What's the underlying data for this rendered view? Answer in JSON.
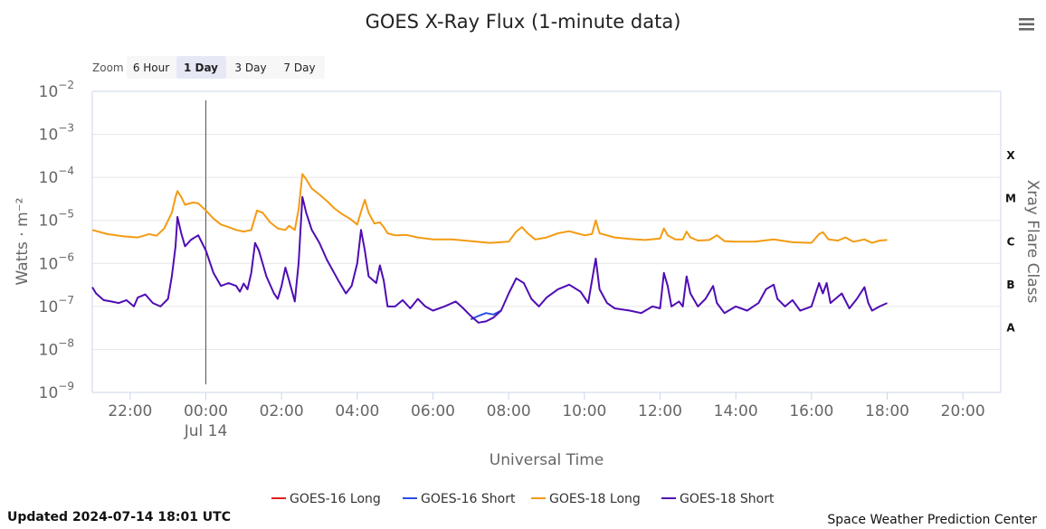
{
  "menu": {
    "icon": "hamburger-menu-icon"
  },
  "zoom": {
    "label": "Zoom",
    "buttons": [
      "6 Hour",
      "1 Day",
      "3 Day",
      "7 Day"
    ],
    "active": "1 Day"
  },
  "footer": {
    "updated": "Updated 2024-07-14 18:01 UTC",
    "credit": "Space Weather Prediction Center"
  },
  "chart_data": {
    "type": "line",
    "title": "GOES X-Ray Flux (1-minute data)",
    "xlabel": "Universal Time",
    "ylabel": "Watts · m⁻²",
    "y2label": "Xray Flare Class",
    "yscale": "log",
    "ylim": [
      1e-09,
      0.01
    ],
    "xlim_hours": [
      -3.0,
      21.0
    ],
    "x_ticks": [
      {
        "h": -2,
        "label": "22:00"
      },
      {
        "h": 0,
        "label": "00:00",
        "sublabel": "Jul 14"
      },
      {
        "h": 2,
        "label": "02:00"
      },
      {
        "h": 4,
        "label": "04:00"
      },
      {
        "h": 6,
        "label": "06:00"
      },
      {
        "h": 8,
        "label": "08:00"
      },
      {
        "h": 10,
        "label": "10:00"
      },
      {
        "h": 12,
        "label": "12:00"
      },
      {
        "h": 14,
        "label": "14:00"
      },
      {
        "h": 16,
        "label": "16:00"
      },
      {
        "h": 18,
        "label": "18:00"
      },
      {
        "h": 20,
        "label": "20:00"
      }
    ],
    "y_ticks": [
      {
        "exp": -2,
        "label": "10",
        "sup": "−2"
      },
      {
        "exp": -3,
        "label": "10",
        "sup": "−3"
      },
      {
        "exp": -4,
        "label": "10",
        "sup": "−4"
      },
      {
        "exp": -5,
        "label": "10",
        "sup": "−5"
      },
      {
        "exp": -6,
        "label": "10",
        "sup": "−6"
      },
      {
        "exp": -7,
        "label": "10",
        "sup": "−7"
      },
      {
        "exp": -8,
        "label": "10",
        "sup": "−8"
      },
      {
        "exp": -9,
        "label": "10",
        "sup": "−9"
      }
    ],
    "flare_classes": [
      {
        "label": "X",
        "value": 0.0001
      },
      {
        "label": "M",
        "value": 1e-05
      },
      {
        "label": "C",
        "value": 1e-06
      },
      {
        "label": "B",
        "value": 1e-07
      },
      {
        "label": "A",
        "value": 1e-08
      }
    ],
    "marker_hour": 0.0,
    "series": [
      {
        "name": "GOES-16 Long",
        "color": "#e0201b",
        "points": []
      },
      {
        "name": "GOES-16 Short",
        "color": "#2b4fe0",
        "points": [
          [
            7.0,
            5e-08
          ],
          [
            7.2,
            6e-08
          ],
          [
            7.4,
            7e-08
          ],
          [
            7.6,
            6.5e-08
          ],
          [
            7.8,
            8e-08
          ]
        ]
      },
      {
        "name": "GOES-18 Long",
        "color": "#f39b13",
        "points": [
          [
            -3.0,
            6e-06
          ],
          [
            -2.6,
            4.8e-06
          ],
          [
            -2.2,
            4.3e-06
          ],
          [
            -1.8,
            4e-06
          ],
          [
            -1.5,
            4.8e-06
          ],
          [
            -1.3,
            4.4e-06
          ],
          [
            -1.1,
            6.5e-06
          ],
          [
            -0.9,
            1.5e-05
          ],
          [
            -0.8,
            3.5e-05
          ],
          [
            -0.75,
            4.8e-05
          ],
          [
            -0.65,
            3.5e-05
          ],
          [
            -0.55,
            2.3e-05
          ],
          [
            -0.35,
            2.6e-05
          ],
          [
            -0.2,
            2.5e-05
          ],
          [
            0.0,
            1.7e-05
          ],
          [
            0.2,
            1.1e-05
          ],
          [
            0.4,
            8e-06
          ],
          [
            0.6,
            7e-06
          ],
          [
            0.8,
            6e-06
          ],
          [
            1.0,
            5.5e-06
          ],
          [
            1.2,
            6e-06
          ],
          [
            1.35,
            1.7e-05
          ],
          [
            1.5,
            1.5e-05
          ],
          [
            1.7,
            9e-06
          ],
          [
            1.9,
            6.5e-06
          ],
          [
            2.1,
            6e-06
          ],
          [
            2.2,
            7.5e-06
          ],
          [
            2.35,
            6e-06
          ],
          [
            2.45,
            1.8e-05
          ],
          [
            2.55,
            0.00012
          ],
          [
            2.65,
            9e-05
          ],
          [
            2.8,
            5.5e-05
          ],
          [
            3.0,
            4e-05
          ],
          [
            3.2,
            2.8e-05
          ],
          [
            3.4,
            1.9e-05
          ],
          [
            3.6,
            1.4e-05
          ],
          [
            3.8,
            1.1e-05
          ],
          [
            4.0,
            8e-06
          ],
          [
            4.1,
            1.6e-05
          ],
          [
            4.2,
            3e-05
          ],
          [
            4.3,
            1.5e-05
          ],
          [
            4.45,
            8.5e-06
          ],
          [
            4.6,
            9e-06
          ],
          [
            4.7,
            7e-06
          ],
          [
            4.8,
            5e-06
          ],
          [
            5.0,
            4.5e-06
          ],
          [
            5.3,
            4.6e-06
          ],
          [
            5.6,
            4e-06
          ],
          [
            6.0,
            3.6e-06
          ],
          [
            6.5,
            3.6e-06
          ],
          [
            7.0,
            3.3e-06
          ],
          [
            7.5,
            3e-06
          ],
          [
            8.0,
            3.2e-06
          ],
          [
            8.2,
            5.5e-06
          ],
          [
            8.35,
            7e-06
          ],
          [
            8.5,
            5e-06
          ],
          [
            8.7,
            3.6e-06
          ],
          [
            9.0,
            4e-06
          ],
          [
            9.3,
            5e-06
          ],
          [
            9.6,
            5.6e-06
          ],
          [
            10.0,
            4.5e-06
          ],
          [
            10.2,
            4.8e-06
          ],
          [
            10.3,
            1e-05
          ],
          [
            10.4,
            5e-06
          ],
          [
            10.8,
            4e-06
          ],
          [
            11.2,
            3.7e-06
          ],
          [
            11.6,
            3.5e-06
          ],
          [
            12.0,
            3.8e-06
          ],
          [
            12.1,
            6.5e-06
          ],
          [
            12.2,
            4.5e-06
          ],
          [
            12.4,
            3.6e-06
          ],
          [
            12.6,
            3.6e-06
          ],
          [
            12.7,
            5.5e-06
          ],
          [
            12.8,
            4e-06
          ],
          [
            13.0,
            3.4e-06
          ],
          [
            13.3,
            3.5e-06
          ],
          [
            13.5,
            4.5e-06
          ],
          [
            13.7,
            3.3e-06
          ],
          [
            14.0,
            3.2e-06
          ],
          [
            14.5,
            3.2e-06
          ],
          [
            15.0,
            3.6e-06
          ],
          [
            15.5,
            3.1e-06
          ],
          [
            16.0,
            3e-06
          ],
          [
            16.2,
            4.8e-06
          ],
          [
            16.3,
            5.3e-06
          ],
          [
            16.45,
            3.6e-06
          ],
          [
            16.7,
            3.4e-06
          ],
          [
            16.9,
            4e-06
          ],
          [
            17.1,
            3.2e-06
          ],
          [
            17.4,
            3.6e-06
          ],
          [
            17.6,
            3e-06
          ],
          [
            17.8,
            3.4e-06
          ],
          [
            18.0,
            3.5e-06
          ]
        ]
      },
      {
        "name": "GOES-18 Short",
        "color": "#4f0db3",
        "points": [
          [
            -3.0,
            2.8e-07
          ],
          [
            -2.9,
            2e-07
          ],
          [
            -2.7,
            1.4e-07
          ],
          [
            -2.5,
            1.3e-07
          ],
          [
            -2.3,
            1.2e-07
          ],
          [
            -2.1,
            1.4e-07
          ],
          [
            -1.9,
            1e-07
          ],
          [
            -1.8,
            1.6e-07
          ],
          [
            -1.6,
            1.9e-07
          ],
          [
            -1.4,
            1.2e-07
          ],
          [
            -1.2,
            1e-07
          ],
          [
            -1.0,
            1.5e-07
          ],
          [
            -0.9,
            5e-07
          ],
          [
            -0.8,
            2.5e-06
          ],
          [
            -0.75,
            1.2e-05
          ],
          [
            -0.65,
            5e-06
          ],
          [
            -0.55,
            2.5e-06
          ],
          [
            -0.4,
            3.5e-06
          ],
          [
            -0.2,
            4.5e-06
          ],
          [
            0.0,
            2e-06
          ],
          [
            0.2,
            6e-07
          ],
          [
            0.4,
            3e-07
          ],
          [
            0.6,
            3.5e-07
          ],
          [
            0.8,
            3e-07
          ],
          [
            0.9,
            2.2e-07
          ],
          [
            1.0,
            3.4e-07
          ],
          [
            1.1,
            2.5e-07
          ],
          [
            1.2,
            6e-07
          ],
          [
            1.3,
            3e-06
          ],
          [
            1.4,
            2e-06
          ],
          [
            1.6,
            5e-07
          ],
          [
            1.8,
            2e-07
          ],
          [
            1.9,
            1.5e-07
          ],
          [
            2.0,
            3e-07
          ],
          [
            2.1,
            8e-07
          ],
          [
            2.2,
            4e-07
          ],
          [
            2.35,
            1.3e-07
          ],
          [
            2.45,
            1e-06
          ],
          [
            2.55,
            3.5e-05
          ],
          [
            2.65,
            1.5e-05
          ],
          [
            2.8,
            6e-06
          ],
          [
            3.0,
            3e-06
          ],
          [
            3.2,
            1.2e-06
          ],
          [
            3.5,
            4e-07
          ],
          [
            3.7,
            2e-07
          ],
          [
            3.85,
            3e-07
          ],
          [
            4.0,
            1e-06
          ],
          [
            4.1,
            6e-06
          ],
          [
            4.2,
            2e-06
          ],
          [
            4.3,
            5e-07
          ],
          [
            4.5,
            3.5e-07
          ],
          [
            4.6,
            9e-07
          ],
          [
            4.7,
            4e-07
          ],
          [
            4.8,
            1e-07
          ],
          [
            5.0,
            1e-07
          ],
          [
            5.2,
            1.4e-07
          ],
          [
            5.4,
            9e-08
          ],
          [
            5.6,
            1.5e-07
          ],
          [
            5.8,
            1e-07
          ],
          [
            6.0,
            8e-08
          ],
          [
            6.3,
            1e-07
          ],
          [
            6.6,
            1.3e-07
          ],
          [
            6.8,
            9e-08
          ],
          [
            7.0,
            6e-08
          ],
          [
            7.2,
            4.2e-08
          ],
          [
            7.4,
            4.5e-08
          ],
          [
            7.6,
            5.5e-08
          ],
          [
            7.8,
            8e-08
          ],
          [
            8.0,
            2e-07
          ],
          [
            8.2,
            4.5e-07
          ],
          [
            8.4,
            3.5e-07
          ],
          [
            8.6,
            1.5e-07
          ],
          [
            8.8,
            1e-07
          ],
          [
            9.0,
            1.6e-07
          ],
          [
            9.3,
            2.5e-07
          ],
          [
            9.6,
            3.2e-07
          ],
          [
            9.9,
            2.2e-07
          ],
          [
            10.1,
            1.2e-07
          ],
          [
            10.3,
            1.3e-06
          ],
          [
            10.4,
            2.5e-07
          ],
          [
            10.6,
            1.2e-07
          ],
          [
            10.8,
            9e-08
          ],
          [
            11.2,
            8e-08
          ],
          [
            11.5,
            7e-08
          ],
          [
            11.8,
            1e-07
          ],
          [
            12.0,
            9e-08
          ],
          [
            12.1,
            6e-07
          ],
          [
            12.2,
            3e-07
          ],
          [
            12.3,
            1e-07
          ],
          [
            12.5,
            1.3e-07
          ],
          [
            12.6,
            1e-07
          ],
          [
            12.7,
            5e-07
          ],
          [
            12.8,
            2e-07
          ],
          [
            13.0,
            1e-07
          ],
          [
            13.2,
            1.5e-07
          ],
          [
            13.4,
            3e-07
          ],
          [
            13.5,
            1.2e-07
          ],
          [
            13.7,
            7e-08
          ],
          [
            14.0,
            1e-07
          ],
          [
            14.3,
            8e-08
          ],
          [
            14.6,
            1.2e-07
          ],
          [
            14.8,
            2.5e-07
          ],
          [
            15.0,
            3.2e-07
          ],
          [
            15.1,
            1.5e-07
          ],
          [
            15.3,
            1e-07
          ],
          [
            15.5,
            1.4e-07
          ],
          [
            15.7,
            8e-08
          ],
          [
            16.0,
            1e-07
          ],
          [
            16.2,
            3.5e-07
          ],
          [
            16.3,
            2e-07
          ],
          [
            16.4,
            3.5e-07
          ],
          [
            16.5,
            1.2e-07
          ],
          [
            16.8,
            2e-07
          ],
          [
            17.0,
            9e-08
          ],
          [
            17.2,
            1.5e-07
          ],
          [
            17.4,
            2.8e-07
          ],
          [
            17.5,
            1.2e-07
          ],
          [
            17.6,
            8e-08
          ],
          [
            17.8,
            1e-07
          ],
          [
            18.0,
            1.2e-07
          ]
        ]
      }
    ]
  }
}
